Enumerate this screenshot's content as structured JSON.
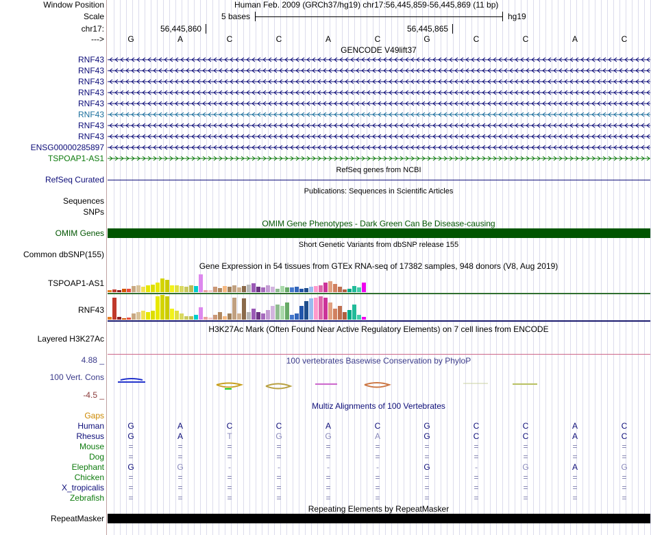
{
  "header": {
    "window_position_label": "Window Position",
    "window_position_value": "Human Feb. 2009 (GRCh37/hg19)   chr17:56,445,859-56,445,869 (11 bp)",
    "scale_label": "Scale",
    "scale_bases": "5 bases",
    "scale_db": "hg19",
    "chrom_label": "chr17:",
    "pos_left": "56,445,860",
    "pos_right": "56,445,865",
    "strand_label": "--->"
  },
  "bases": [
    "G",
    "A",
    "C",
    "C",
    "A",
    "C",
    "G",
    "C",
    "C",
    "A",
    "C"
  ],
  "gencode": {
    "title": "GENCODE V49lift37",
    "tracks": [
      {
        "label": "RNF43",
        "color": "#0c0c78",
        "strand": "-"
      },
      {
        "label": "RNF43",
        "color": "#0c0c78",
        "strand": "-"
      },
      {
        "label": "RNF43",
        "color": "#0c0c78",
        "strand": "-"
      },
      {
        "label": "RNF43",
        "color": "#0c0c78",
        "strand": "-"
      },
      {
        "label": "RNF43",
        "color": "#0c0c78",
        "strand": "-"
      },
      {
        "label": "RNF43",
        "color": "#1a6e9c",
        "strand": "-"
      },
      {
        "label": "RNF43",
        "color": "#0c0c78",
        "strand": "-"
      },
      {
        "label": "RNF43",
        "color": "#0c0c78",
        "strand": "-"
      },
      {
        "label": "ENSG00000285897",
        "color": "#0c0c78",
        "strand": "-"
      },
      {
        "label": "TSPOAP1-AS1",
        "color": "#0c7a0c",
        "strand": "+"
      }
    ]
  },
  "refseq": {
    "title": "RefSeq genes from NCBI",
    "label": "RefSeq Curated"
  },
  "publications": {
    "title": "Publications: Sequences in Scientific Articles",
    "label1": "Sequences",
    "label2": "SNPs"
  },
  "omim": {
    "title": "OMIM Gene Phenotypes - Dark Green Can Be Disease-causing",
    "label": "OMIM Genes",
    "color": "#005500"
  },
  "dbsnp": {
    "title": "Short Genetic Variants from dbSNP release 155",
    "label": "Common dbSNP(155)"
  },
  "gtex": {
    "title": "Gene Expression in 54 tissues from GTEx RNA-seq of 17382 samples, 948 donors (V8, Aug 2019)",
    "genes": [
      {
        "label": "TSPOAP1-AS1",
        "levels": [
          0.1,
          0.15,
          0.12,
          0.2,
          0.18,
          0.35,
          0.4,
          0.3,
          0.38,
          0.42,
          0.55,
          0.75,
          0.7,
          0.4,
          0.38,
          0.36,
          0.3,
          0.38,
          0.35,
          1.0,
          0.12,
          0.1,
          0.3,
          0.22,
          0.35,
          0.32,
          0.4,
          0.28,
          0.35,
          0.42,
          0.5,
          0.3,
          0.25,
          0.38,
          0.3,
          0.2,
          0.35,
          0.28,
          0.25,
          0.3,
          0.18,
          0.22,
          0.3,
          0.35,
          0.4,
          0.55,
          0.6,
          0.45,
          0.3,
          0.15,
          0.2,
          0.35,
          0.25,
          0.55
        ]
      },
      {
        "label": "RNF43",
        "levels": [
          0.1,
          0.9,
          0.1,
          0.05,
          0.08,
          0.25,
          0.3,
          0.35,
          0.3,
          0.35,
          0.95,
          1.0,
          0.95,
          0.45,
          0.35,
          0.25,
          0.15,
          0.15,
          0.2,
          0.5,
          0.1,
          0.08,
          0.2,
          0.3,
          0.15,
          0.25,
          0.9,
          0.25,
          0.85,
          0.3,
          0.45,
          0.3,
          0.25,
          0.4,
          0.55,
          0.6,
          0.55,
          0.7,
          0.2,
          0.25,
          0.55,
          0.75,
          0.85,
          0.9,
          0.95,
          0.9,
          0.7,
          0.45,
          0.55,
          0.3,
          0.4,
          0.6,
          0.2,
          0.1
        ]
      }
    ],
    "colors": [
      "#e67e22",
      "#c0392b",
      "#8e2020",
      "#d35400",
      "#e74c3c",
      "#c8a882",
      "#d9c29a",
      "#f0e050",
      "#e6e600",
      "#dddd00",
      "#e8e800",
      "#d4d400",
      "#cccc00",
      "#f2f21a",
      "#e0e040",
      "#d8d860",
      "#c9c960",
      "#bbbb55",
      "#00cccc",
      "#dd88ee",
      "#e8a0a0",
      "#f4c8c8",
      "#cc9977",
      "#b08860",
      "#f5b982",
      "#a0805a",
      "#c0a080",
      "#d0b090",
      "#8a6a4a",
      "#b8b8b8",
      "#9b59b6",
      "#6c3483",
      "#a569bd",
      "#c39bd3",
      "#d2b4de",
      "#8fbc8f",
      "#aad8aa",
      "#66aa66",
      "#4477cc",
      "#3366bb",
      "#2255aa",
      "#1f4e8c",
      "#99bbee",
      "#ff99cc",
      "#dd66aa",
      "#cc3399",
      "#e0a080",
      "#d08060",
      "#c07050",
      "#b06040",
      "#00aa88",
      "#22bb99",
      "#44ccaa",
      "#ee00ee"
    ]
  },
  "h3k27ac": {
    "title": "H3K27Ac Mark (Often Found Near Active Regulatory Elements) on 7 cell lines from ENCODE",
    "label": "Layered H3K27Ac"
  },
  "phylop": {
    "title": "100 vertebrates Basewise Conservation by PhyloP",
    "label": "100 Vert. Cons",
    "max": "4.88 _",
    "min": "-4.5 _"
  },
  "multiz": {
    "title": "Multiz Alignments of 100 Vertebrates",
    "gaps_label": "Gaps",
    "species": [
      {
        "name": "Human",
        "color": "#0c0c78",
        "bases": [
          "G",
          "A",
          "C",
          "C",
          "A",
          "C",
          "G",
          "C",
          "C",
          "A",
          "C"
        ],
        "bcolor": "#0c0c78"
      },
      {
        "name": "Rhesus",
        "color": "#0c0c78",
        "bases": [
          "G",
          "A",
          "T",
          "G",
          "G",
          "A",
          "G",
          "C",
          "C",
          "A",
          "C"
        ],
        "bcolor": "#0c0c78"
      },
      {
        "name": "Mouse",
        "color": "#0c7a0c",
        "bases": [
          "=",
          "=",
          "=",
          "=",
          "=",
          "=",
          "=",
          "=",
          "=",
          "=",
          "="
        ],
        "bcolor": "#7777aa"
      },
      {
        "name": "Dog",
        "color": "#0c7a0c",
        "bases": [
          "=",
          "=",
          "=",
          "=",
          "=",
          "=",
          "=",
          "=",
          "=",
          "=",
          "="
        ],
        "bcolor": "#7777aa"
      },
      {
        "name": "Elephant",
        "color": "#0c7a0c",
        "bases": [
          "G",
          "G",
          "-",
          "-",
          "-",
          "-",
          "G",
          "-",
          "G",
          "A",
          "G"
        ],
        "bcolor": "#0c0c78"
      },
      {
        "name": "Chicken",
        "color": "#0c7a0c",
        "bases": [
          "=",
          "=",
          "=",
          "=",
          "=",
          "=",
          "=",
          "=",
          "=",
          "=",
          "="
        ],
        "bcolor": "#7777aa"
      },
      {
        "name": "X_tropicalis",
        "color": "#0c0c78",
        "bases": [
          "=",
          "=",
          "=",
          "=",
          "=",
          "=",
          "=",
          "=",
          "=",
          "=",
          "="
        ],
        "bcolor": "#7777aa"
      },
      {
        "name": "Zebrafish",
        "color": "#0c7a0c",
        "bases": [
          "=",
          "=",
          "=",
          "=",
          "=",
          "=",
          "=",
          "=",
          "=",
          "=",
          "="
        ],
        "bcolor": "#7777aa"
      }
    ]
  },
  "repeatmasker": {
    "title": "Repeating Elements by RepeatMasker",
    "label": "RepeatMasker"
  }
}
